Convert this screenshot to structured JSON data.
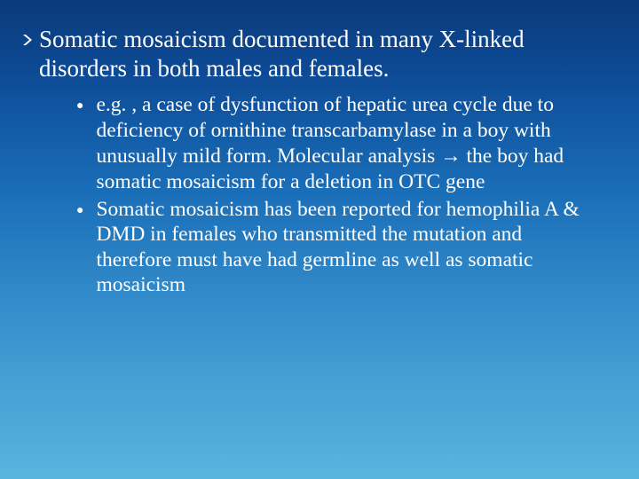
{
  "slide": {
    "background_gradient": [
      "#0a3a7a",
      "#0d4a95",
      "#1a6eb8",
      "#3a95cf",
      "#5ab5de"
    ],
    "text_color": "#ffffff",
    "main_bullet_color": "#ffffff",
    "sub_bullet_color": "#ffffff",
    "main_fontsize": 27,
    "sub_fontsize": 23.5,
    "main": {
      "bullet_type": "chevron",
      "text": "Somatic mosaicism documented in many X-linked disorders in both males and females."
    },
    "subs": [
      {
        "bullet_type": "disc",
        "text": "e.g. , a case of dysfunction of hepatic urea cycle due to deficiency of ornithine transcarbamylase in a boy with unusually mild form. Molecular analysis → the boy had somatic mosaicism for a deletion in OTC gene"
      },
      {
        "bullet_type": "disc",
        "text": "Somatic mosaicism has been reported for hemophilia A & DMD in females who transmitted the mutation and therefore must have had germline as well as somatic mosaicism"
      }
    ]
  }
}
